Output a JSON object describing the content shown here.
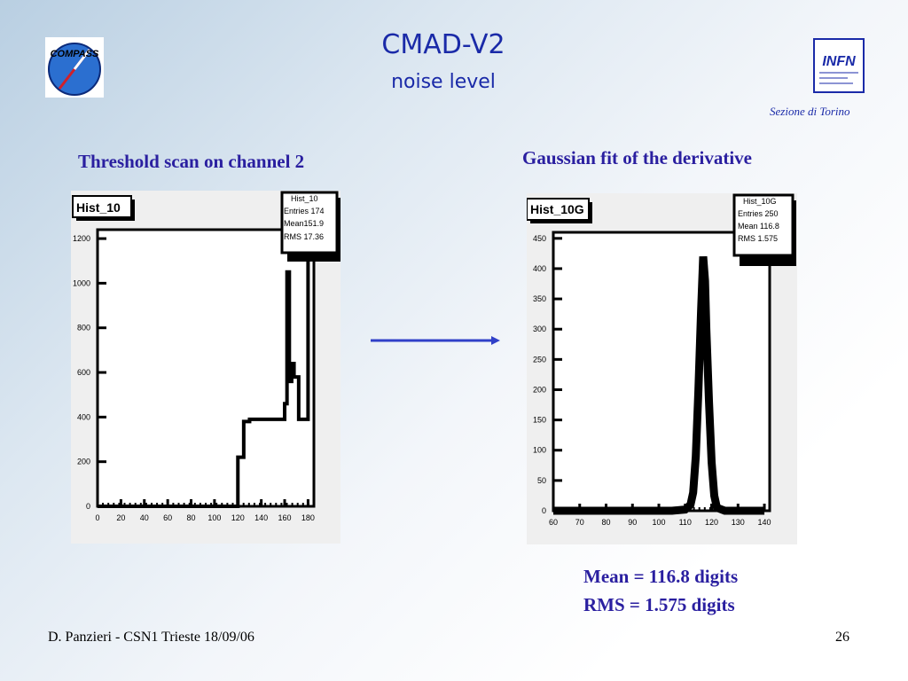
{
  "slide": {
    "title": "CMAD-V2",
    "subtitle": "noise level",
    "left_label": "Threshold scan on channel 2",
    "right_label": "Gaussian fit of the derivative",
    "affiliation": "Sezione di Torino",
    "compass_logo_text": "COMPASS",
    "infn_logo_text": "INFN",
    "mean_result": "Mean = 116.8 digits",
    "rms_result": "RMS = 1.575 digits",
    "footer_left": "D. Panzieri - CSN1 Trieste 18/09/06",
    "page_number": "26",
    "arrow_color": "#3040c8"
  },
  "chart_data": [
    {
      "type": "line",
      "title": "Hist_10",
      "stats": {
        "name": "Hist_10",
        "entries": "Entries 174",
        "mean": "Mean151.9",
        "rms": "RMS 17.36"
      },
      "xlim": [
        0,
        185
      ],
      "ylim": [
        0,
        1240
      ],
      "xticks": [
        0,
        20,
        40,
        60,
        80,
        100,
        120,
        140,
        160,
        180
      ],
      "yticks": [
        0,
        200,
        400,
        600,
        800,
        1000,
        1200
      ],
      "x": [
        0,
        5,
        10,
        15,
        20,
        25,
        30,
        35,
        40,
        45,
        50,
        55,
        60,
        65,
        70,
        75,
        80,
        85,
        90,
        95,
        100,
        105,
        110,
        115,
        118,
        120,
        125,
        130,
        135,
        140,
        145,
        150,
        155,
        160,
        162,
        164,
        166,
        168,
        172,
        176,
        180
      ],
      "y": [
        0,
        0,
        0,
        0,
        0,
        0,
        0,
        0,
        0,
        0,
        0,
        0,
        0,
        0,
        0,
        0,
        0,
        0,
        0,
        0,
        0,
        0,
        0,
        0,
        0,
        220,
        380,
        390,
        390,
        390,
        390,
        390,
        390,
        460,
        1050,
        560,
        640,
        580,
        390,
        390,
        1200
      ]
    },
    {
      "type": "line",
      "title": "Hist_10G",
      "stats": {
        "name": "Hist_10G",
        "entries": "Entries 250",
        "mean": "Mean  116.8",
        "rms": "RMS 1.575"
      },
      "xlim": [
        60,
        142
      ],
      "ylim": [
        0,
        460
      ],
      "xticks": [
        60,
        70,
        80,
        90,
        100,
        110,
        120,
        130,
        140
      ],
      "yticks": [
        0,
        50,
        100,
        150,
        200,
        250,
        300,
        350,
        400,
        450
      ],
      "x": [
        60,
        105,
        110,
        112,
        113,
        114,
        115,
        116,
        116.8,
        117.5,
        118,
        119,
        120,
        121,
        122,
        125,
        130,
        140
      ],
      "y": [
        0,
        0,
        2,
        10,
        30,
        90,
        200,
        330,
        420,
        380,
        300,
        180,
        80,
        25,
        5,
        0,
        0,
        0
      ]
    }
  ]
}
